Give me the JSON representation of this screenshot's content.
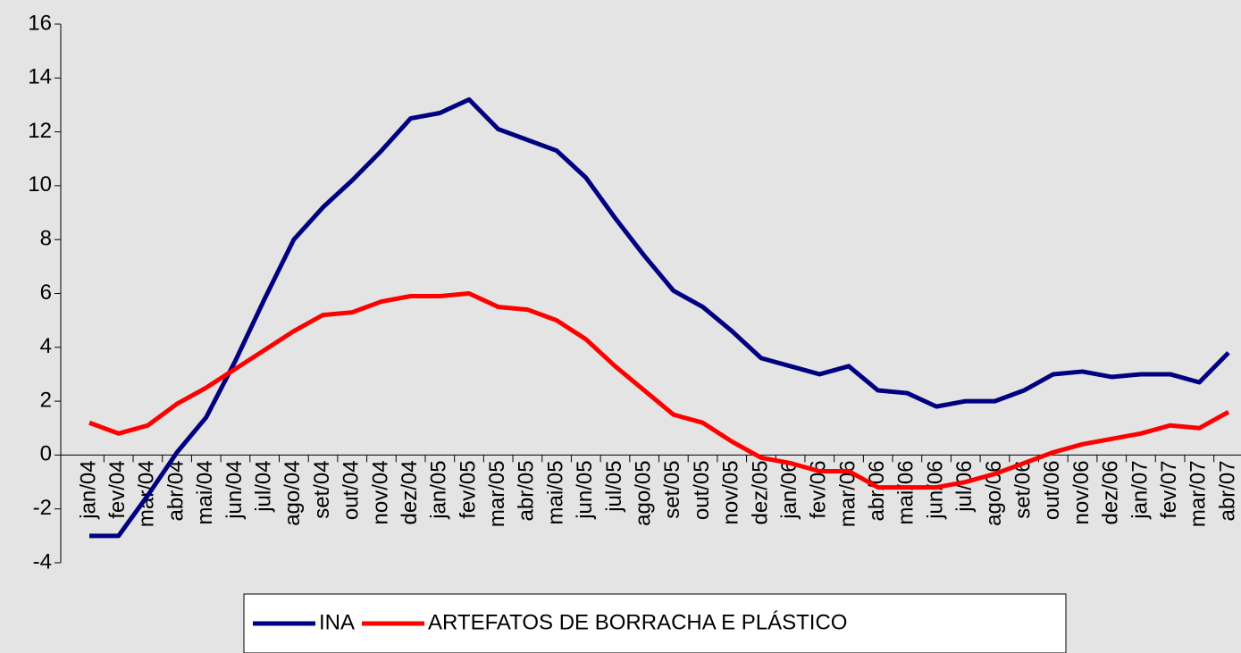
{
  "chart_data": {
    "type": "line",
    "categories": [
      "jan/04",
      "fev/04",
      "mar/04",
      "abr/04",
      "mai/04",
      "jun/04",
      "jul/04",
      "ago/04",
      "set/04",
      "out/04",
      "nov/04",
      "dez/04",
      "jan/05",
      "fev/05",
      "mar/05",
      "abr/05",
      "mai/05",
      "jun/05",
      "jul/05",
      "ago/05",
      "set/05",
      "out/05",
      "nov/05",
      "dez/05",
      "jan/06",
      "fev/06",
      "mar/06",
      "abr/06",
      "mai/06",
      "jun/06",
      "jul/06",
      "ago/06",
      "set/06",
      "out/06",
      "nov/06",
      "dez/06",
      "jan/07",
      "fev/07",
      "mar/07",
      "abr/07"
    ],
    "series": [
      {
        "name": "INA",
        "color": "#000080",
        "values": [
          -3,
          -3,
          -1.5,
          0.1,
          1.4,
          3.5,
          5.8,
          8.0,
          9.2,
          10.2,
          11.3,
          12.5,
          12.7,
          13.2,
          12.1,
          11.7,
          11.3,
          10.3,
          8.8,
          7.4,
          6.1,
          5.5,
          4.6,
          3.6,
          3.3,
          3.0,
          3.3,
          2.4,
          2.3,
          1.8,
          2.0,
          2.0,
          2.4,
          3.0,
          3.1,
          2.9,
          3.0,
          3.0,
          2.7,
          3.8
        ]
      },
      {
        "name": "ARTEFATOS DE BORRACHA E PLÁSTICO",
        "color": "#ff0000",
        "values": [
          1.2,
          0.8,
          1.1,
          1.9,
          2.5,
          3.2,
          3.9,
          4.6,
          5.2,
          5.3,
          5.7,
          5.9,
          5.9,
          6.0,
          5.5,
          5.4,
          5.0,
          4.3,
          3.3,
          2.4,
          1.5,
          1.2,
          0.5,
          -0.1,
          -0.3,
          -0.6,
          -0.6,
          -1.2,
          -1.2,
          -1.2,
          -1.0,
          -0.7,
          -0.3,
          0.1,
          0.4,
          0.6,
          0.8,
          1.1,
          1.0,
          1.6
        ]
      }
    ],
    "ylim": [
      -4,
      16
    ],
    "yticks": [
      -4,
      -2,
      0,
      2,
      4,
      6,
      8,
      10,
      12,
      14,
      16
    ],
    "legend": "bottom"
  }
}
